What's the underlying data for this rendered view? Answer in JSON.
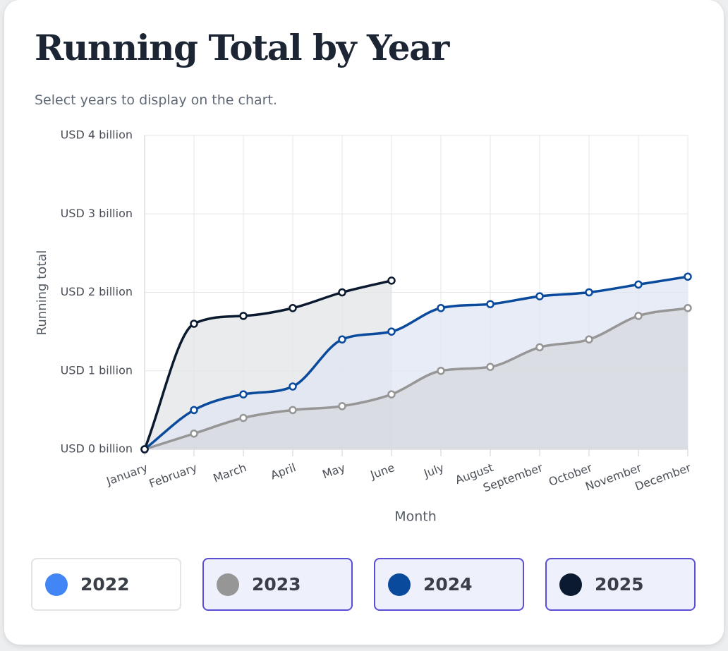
{
  "chart_data": {
    "type": "area",
    "title": "Running Total by Year",
    "subtitle": "Select years to display on the chart.",
    "x_label": "Month",
    "y_label": "Running total",
    "categories": [
      "January",
      "February",
      "March",
      "April",
      "May",
      "June",
      "July",
      "August",
      "September",
      "October",
      "November",
      "December"
    ],
    "ylim": [
      0,
      4
    ],
    "yticks": [
      {
        "value": 0,
        "label": "USD 0 billion"
      },
      {
        "value": 1,
        "label": "USD 1 billion"
      },
      {
        "value": 2,
        "label": "USD 2 billion"
      },
      {
        "value": 3,
        "label": "USD 3 billion"
      },
      {
        "value": 4,
        "label": "USD 4 billion"
      }
    ],
    "grid": true,
    "series": [
      {
        "name": "2022",
        "color": "#4285f4",
        "selected": false,
        "values": [
          null,
          null,
          null,
          null,
          null,
          null,
          null,
          null,
          null,
          null,
          null,
          null
        ]
      },
      {
        "name": "2023",
        "color": "#969696",
        "fill": "#d5d8dc",
        "selected": true,
        "values": [
          0,
          0.2,
          0.4,
          0.5,
          0.55,
          0.7,
          1.0,
          1.05,
          1.3,
          1.4,
          1.7,
          1.8
        ]
      },
      {
        "name": "2024",
        "color": "#0a4a9c",
        "fill": "#dfe6f3",
        "selected": true,
        "values": [
          0,
          0.5,
          0.7,
          0.8,
          1.4,
          1.5,
          1.8,
          1.85,
          1.95,
          2.0,
          2.1,
          2.2
        ]
      },
      {
        "name": "2025",
        "color": "#0b1a2e",
        "fill": "#e3e4e5",
        "selected": true,
        "values": [
          0,
          1.6,
          1.7,
          1.8,
          2.0,
          2.15,
          null,
          null,
          null,
          null,
          null,
          null
        ]
      }
    ]
  }
}
